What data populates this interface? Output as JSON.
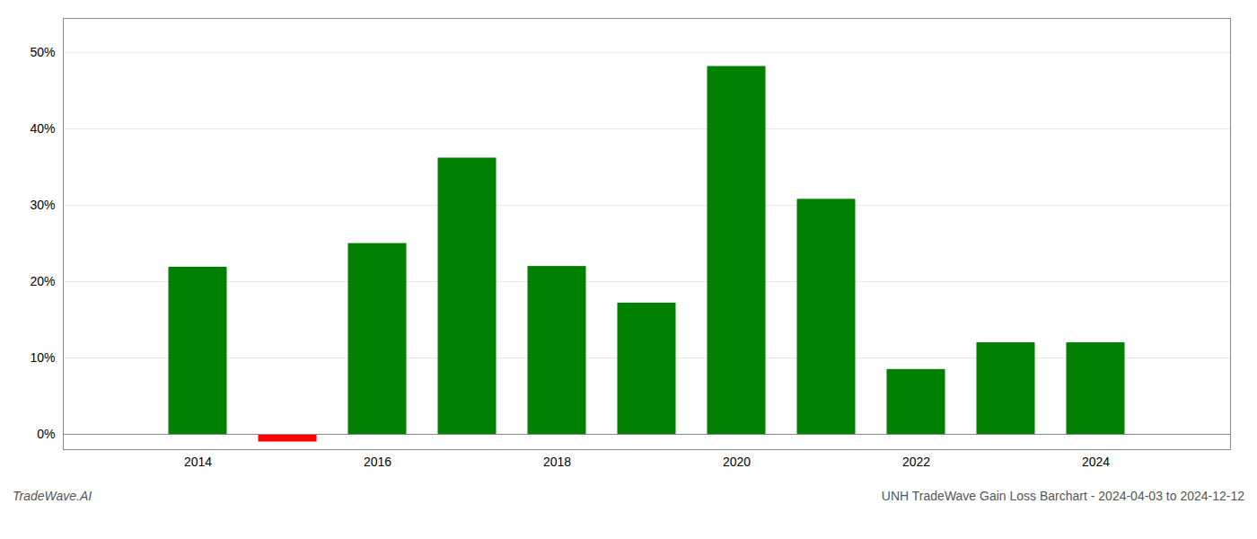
{
  "chart_data": {
    "type": "bar",
    "title": "UNH TradeWave Gain Loss Barchart - 2024-04-03 to 2024-12-12",
    "annotations": [
      "TradeWave.AI"
    ],
    "x": [
      2014,
      2015,
      2016,
      2017,
      2018,
      2019,
      2020,
      2021,
      2022,
      2023,
      2024
    ],
    "values": [
      0.219,
      -0.01,
      0.25,
      0.362,
      0.22,
      0.172,
      0.482,
      0.308,
      0.085,
      0.12,
      0.12
    ],
    "colors": [
      "#008000",
      "#ff0000",
      "#008000",
      "#008000",
      "#008000",
      "#008000",
      "#008000",
      "#008000",
      "#008000",
      "#008000",
      "#008000"
    ],
    "xlim": [
      2012.5,
      2025.5
    ],
    "xticks": [
      2014,
      2016,
      2018,
      2020,
      2022,
      2024
    ],
    "ylim": [
      -0.02,
      0.545
    ],
    "yticks": [
      {
        "value": 0.0,
        "label": "0%"
      },
      {
        "value": 0.1,
        "label": "10%"
      },
      {
        "value": 0.2,
        "label": "20%"
      },
      {
        "value": 0.3,
        "label": "30%"
      },
      {
        "value": 0.4,
        "label": "40%"
      },
      {
        "value": 0.5,
        "label": "50%"
      }
    ],
    "grid": true
  }
}
